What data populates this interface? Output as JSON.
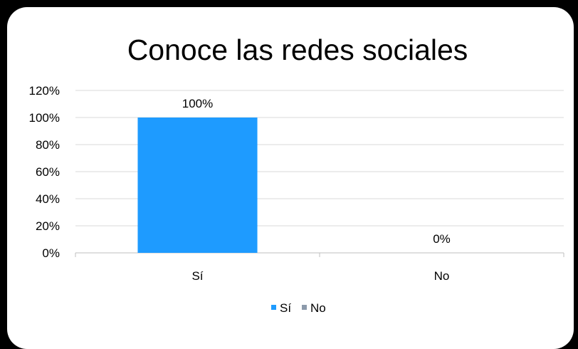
{
  "chart_data": {
    "type": "bar",
    "title": "Conoce las redes sociales",
    "categories": [
      "Sí",
      "No"
    ],
    "series": [
      {
        "name": "Sí",
        "values": [
          100,
          null
        ]
      },
      {
        "name": "No",
        "values": [
          null,
          0
        ]
      }
    ],
    "data_labels": [
      "100%",
      "0%"
    ],
    "y_ticks": [
      "0%",
      "20%",
      "40%",
      "60%",
      "80%",
      "100%",
      "120%"
    ],
    "ylim": [
      0,
      120
    ],
    "grid": true,
    "legend": {
      "position": "bottom",
      "entries": [
        "Sí",
        "No"
      ]
    },
    "colors": {
      "Sí": "#1e9bff",
      "No": "#8c9aab",
      "grid": "#d9d9d9",
      "axis": "#bfbfbf",
      "frame": "#000000"
    }
  }
}
